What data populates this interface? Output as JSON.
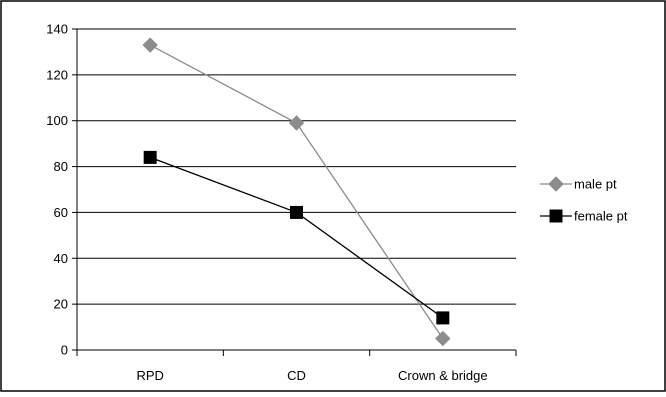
{
  "chart_data": {
    "type": "line",
    "title": "",
    "xlabel": "",
    "ylabel": "",
    "categories": [
      "RPD",
      "CD",
      "Crown & bridge"
    ],
    "ylim": [
      0,
      140
    ],
    "yticks": [
      0,
      20,
      40,
      60,
      80,
      100,
      120,
      140
    ],
    "grid": true,
    "legend_position": "right",
    "series": [
      {
        "name": "male pt",
        "values": [
          133,
          99,
          5
        ],
        "color": "#8c8c8c",
        "marker": "diamond"
      },
      {
        "name": "female pt",
        "values": [
          84,
          60,
          14
        ],
        "color": "#000000",
        "marker": "square"
      }
    ]
  }
}
